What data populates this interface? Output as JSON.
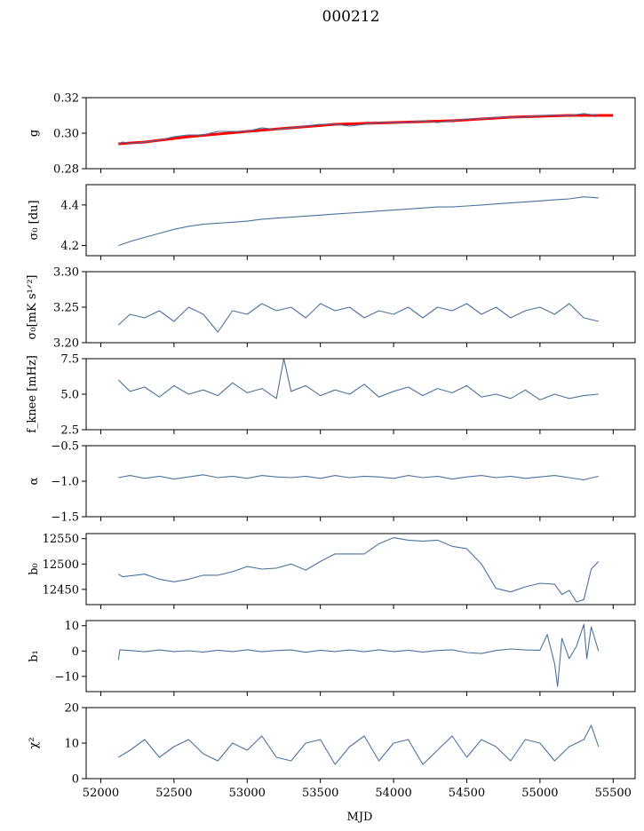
{
  "chart_data": {
    "title": "000212",
    "type": "line",
    "shared_xlabel": "MJD",
    "xlim": [
      51900,
      55650
    ],
    "xticks": [
      52000,
      52500,
      53000,
      53500,
      54000,
      54500,
      55000,
      55500
    ],
    "xtick_labels": [
      "52000",
      "52500",
      "53000",
      "53500",
      "54000",
      "54500",
      "55000",
      "55500"
    ],
    "grid": false,
    "colors": {
      "main": "#4c72a0",
      "fit": "#ff0000"
    },
    "panels": [
      {
        "id": "g",
        "ylabel": "g",
        "ylim": [
          0.28,
          0.32
        ],
        "yticks": [
          0.28,
          0.3,
          0.32
        ],
        "ytick_labels": [
          "0.28",
          "0.30",
          "0.32"
        ],
        "fit": {
          "x": [
            52120,
            52300,
            52600,
            53000,
            53300,
            53600,
            54000,
            54400,
            54800,
            55200,
            55500
          ],
          "y": [
            0.294,
            0.295,
            0.298,
            0.301,
            0.303,
            0.305,
            0.306,
            0.307,
            0.309,
            0.31,
            0.31
          ]
        },
        "series": {
          "x": [
            52120,
            52150,
            52200,
            52300,
            52400,
            52500,
            52600,
            52700,
            52800,
            52900,
            53000,
            53100,
            53200,
            53300,
            53400,
            53500,
            53600,
            53700,
            53800,
            53900,
            54000,
            54100,
            54200,
            54300,
            54400,
            54500,
            54600,
            54700,
            54800,
            54900,
            55000,
            55100,
            55200,
            55300,
            55400
          ],
          "y": [
            0.294,
            0.295,
            0.294,
            0.295,
            0.296,
            0.298,
            0.299,
            0.299,
            0.301,
            0.301,
            0.301,
            0.303,
            0.302,
            0.303,
            0.304,
            0.305,
            0.305,
            0.304,
            0.305,
            0.306,
            0.306,
            0.306,
            0.307,
            0.306,
            0.307,
            0.308,
            0.308,
            0.309,
            0.309,
            0.309,
            0.31,
            0.31,
            0.31,
            0.311,
            0.31
          ]
        }
      },
      {
        "id": "sigma0_du",
        "ylabel": "σ₀ [du]",
        "ylim": [
          4.15,
          4.5
        ],
        "yticks": [
          4.2,
          4.4
        ],
        "ytick_labels": [
          "4.2",
          "4.4"
        ],
        "series": {
          "x": [
            52120,
            52200,
            52300,
            52400,
            52500,
            52600,
            52700,
            52800,
            52900,
            53000,
            53100,
            53200,
            53300,
            53400,
            53500,
            53600,
            53700,
            53800,
            53900,
            54000,
            54100,
            54200,
            54300,
            54400,
            54500,
            54600,
            54700,
            54800,
            54900,
            55000,
            55100,
            55200,
            55300,
            55400
          ],
          "y": [
            4.2,
            4.22,
            4.24,
            4.26,
            4.28,
            4.295,
            4.305,
            4.31,
            4.315,
            4.32,
            4.33,
            4.335,
            4.34,
            4.345,
            4.35,
            4.355,
            4.36,
            4.365,
            4.37,
            4.375,
            4.38,
            4.385,
            4.39,
            4.39,
            4.395,
            4.4,
            4.405,
            4.41,
            4.415,
            4.42,
            4.425,
            4.43,
            4.44,
            4.435
          ]
        }
      },
      {
        "id": "sigma0_mks",
        "ylabel": "σ₀[mK s¹ᐟ²]",
        "ylim": [
          3.2,
          3.3
        ],
        "yticks": [
          3.2,
          3.25,
          3.3
        ],
        "ytick_labels": [
          "3.20",
          "3.25",
          "3.30"
        ],
        "series": {
          "x": [
            52120,
            52200,
            52300,
            52400,
            52500,
            52600,
            52700,
            52800,
            52900,
            53000,
            53100,
            53200,
            53300,
            53400,
            53500,
            53600,
            53700,
            53800,
            53900,
            54000,
            54100,
            54200,
            54300,
            54400,
            54500,
            54600,
            54700,
            54800,
            54900,
            55000,
            55100,
            55200,
            55300,
            55400
          ],
          "y": [
            3.225,
            3.24,
            3.235,
            3.245,
            3.23,
            3.25,
            3.24,
            3.215,
            3.245,
            3.24,
            3.255,
            3.245,
            3.25,
            3.235,
            3.255,
            3.245,
            3.25,
            3.235,
            3.245,
            3.24,
            3.25,
            3.235,
            3.25,
            3.245,
            3.255,
            3.24,
            3.25,
            3.235,
            3.245,
            3.25,
            3.24,
            3.255,
            3.235,
            3.23
          ]
        }
      },
      {
        "id": "fknee",
        "ylabel": "f_knee [mHz]",
        "ylim": [
          2.5,
          7.5
        ],
        "yticks": [
          2.5,
          5.0,
          7.5
        ],
        "ytick_labels": [
          "2.5",
          "5.0",
          "7.5"
        ],
        "series": {
          "x": [
            52120,
            52200,
            52300,
            52400,
            52500,
            52600,
            52700,
            52800,
            52900,
            53000,
            53100,
            53200,
            53250,
            53300,
            53400,
            53500,
            53600,
            53700,
            53800,
            53900,
            54000,
            54100,
            54200,
            54300,
            54400,
            54500,
            54600,
            54700,
            54800,
            54900,
            55000,
            55100,
            55200,
            55300,
            55400
          ],
          "y": [
            6.0,
            5.2,
            5.5,
            4.8,
            5.6,
            5.0,
            5.3,
            4.9,
            5.8,
            5.1,
            5.4,
            4.7,
            7.5,
            5.2,
            5.6,
            4.9,
            5.3,
            5.0,
            5.7,
            4.8,
            5.2,
            5.5,
            4.9,
            5.4,
            5.1,
            5.6,
            4.8,
            5.0,
            4.7,
            5.3,
            4.6,
            5.0,
            4.7,
            4.9,
            5.0
          ]
        }
      },
      {
        "id": "alpha",
        "ylabel": "α",
        "ylim": [
          -1.5,
          -0.5
        ],
        "yticks": [
          -1.5,
          -1.0,
          -0.5
        ],
        "ytick_labels": [
          "−1.5",
          "−1.0",
          "−0.5"
        ],
        "series": {
          "x": [
            52120,
            52200,
            52300,
            52400,
            52500,
            52600,
            52700,
            52800,
            52900,
            53000,
            53100,
            53200,
            53300,
            53400,
            53500,
            53600,
            53700,
            53800,
            53900,
            54000,
            54100,
            54200,
            54300,
            54400,
            54500,
            54600,
            54700,
            54800,
            54900,
            55000,
            55100,
            55200,
            55300,
            55400
          ],
          "y": [
            -0.95,
            -0.92,
            -0.96,
            -0.93,
            -0.97,
            -0.94,
            -0.91,
            -0.95,
            -0.93,
            -0.96,
            -0.92,
            -0.94,
            -0.95,
            -0.93,
            -0.96,
            -0.92,
            -0.95,
            -0.93,
            -0.94,
            -0.96,
            -0.92,
            -0.95,
            -0.93,
            -0.97,
            -0.94,
            -0.92,
            -0.95,
            -0.93,
            -0.96,
            -0.94,
            -0.92,
            -0.95,
            -0.98,
            -0.93
          ]
        }
      },
      {
        "id": "b0",
        "ylabel": "b₀",
        "ylim": [
          12420,
          12560
        ],
        "yticks": [
          12450,
          12500,
          12550
        ],
        "ytick_labels": [
          "12450",
          "12500",
          "12550"
        ],
        "series": {
          "x": [
            52120,
            52150,
            52300,
            52400,
            52500,
            52600,
            52700,
            52800,
            52900,
            53000,
            53100,
            53200,
            53300,
            53400,
            53500,
            53600,
            53700,
            53800,
            53900,
            54000,
            54100,
            54200,
            54300,
            54400,
            54500,
            54600,
            54700,
            54800,
            54900,
            55000,
            55100,
            55150,
            55200,
            55250,
            55300,
            55350,
            55400
          ],
          "y": [
            12480,
            12475,
            12480,
            12470,
            12465,
            12470,
            12478,
            12478,
            12485,
            12495,
            12490,
            12492,
            12500,
            12488,
            12505,
            12520,
            12520,
            12520,
            12540,
            12552,
            12547,
            12545,
            12547,
            12535,
            12530,
            12500,
            12452,
            12445,
            12455,
            12462,
            12460,
            12440,
            12448,
            12425,
            12430,
            12490,
            12505
          ]
        }
      },
      {
        "id": "b1",
        "ylabel": "b₁",
        "ylim": [
          -16,
          12
        ],
        "yticks": [
          -10,
          0,
          10
        ],
        "ytick_labels": [
          "−10",
          "0",
          "10"
        ],
        "series": {
          "x": [
            52120,
            52130,
            52200,
            52300,
            52400,
            52500,
            52600,
            52700,
            52800,
            52900,
            53000,
            53100,
            53200,
            53300,
            53400,
            53500,
            53600,
            53700,
            53800,
            53900,
            54000,
            54100,
            54200,
            54300,
            54400,
            54500,
            54600,
            54700,
            54800,
            54900,
            55000,
            55050,
            55100,
            55120,
            55150,
            55200,
            55250,
            55300,
            55320,
            55350,
            55400
          ],
          "y": [
            -3.5,
            0.5,
            0.2,
            -0.3,
            0.4,
            -0.2,
            0.1,
            -0.4,
            0.3,
            -0.2,
            0.5,
            -0.3,
            0.2,
            0.4,
            -0.5,
            0.3,
            -0.2,
            0.4,
            -0.3,
            0.5,
            -0.2,
            0.3,
            -0.4,
            0.2,
            0.5,
            -0.6,
            -1.0,
            0.2,
            0.8,
            0.4,
            0.3,
            6.5,
            -5.0,
            -14.0,
            5.0,
            -3.0,
            2.0,
            10.5,
            -3.0,
            9.5,
            0.0
          ]
        }
      },
      {
        "id": "chi2",
        "ylabel": "χ²",
        "ylim": [
          0,
          20
        ],
        "yticks": [
          0,
          10,
          20
        ],
        "ytick_labels": [
          "0",
          "10",
          "20"
        ],
        "series": {
          "x": [
            52120,
            52200,
            52300,
            52400,
            52500,
            52600,
            52700,
            52800,
            52900,
            53000,
            53100,
            53200,
            53300,
            53400,
            53500,
            53600,
            53700,
            53800,
            53900,
            54000,
            54100,
            54200,
            54300,
            54400,
            54500,
            54600,
            54700,
            54800,
            54900,
            55000,
            55100,
            55200,
            55300,
            55350,
            55400
          ],
          "y": [
            6,
            8,
            11,
            6,
            9,
            11,
            7,
            5,
            10,
            8,
            12,
            6,
            5,
            10,
            11,
            4,
            9,
            12,
            5,
            10,
            11,
            4,
            8,
            12,
            6,
            11,
            9,
            5,
            11,
            10,
            5,
            9,
            11,
            15,
            9
          ]
        }
      }
    ]
  }
}
